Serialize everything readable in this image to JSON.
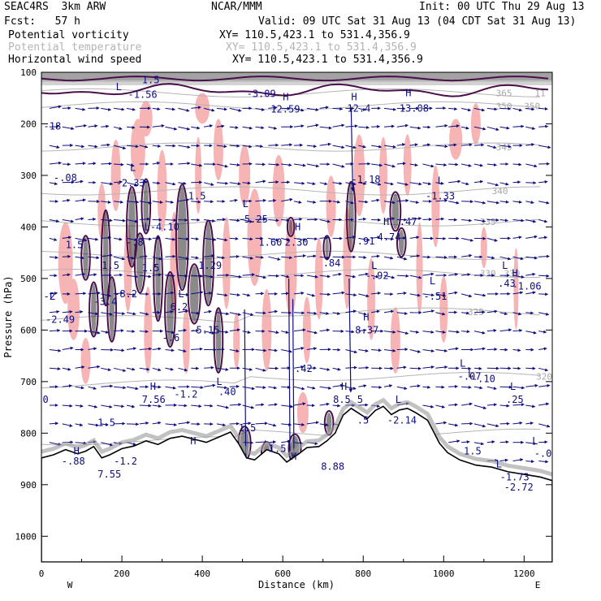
{
  "header": {
    "model": "SEAC4RS  3km ARW",
    "fcst": "Fcst:   57 h",
    "org": "NCAR/MMM",
    "init": "Init: 00 UTC Thu 29 Aug 13",
    "valid": "Valid: 09 UTC Sat 31 Aug 13 (04 CDT Sat 31 Aug 13)",
    "fields": [
      {
        "name": "Potential vorticity",
        "xy": "XY= 110.5,423.1 to 531.4,356.9",
        "color": "#000000"
      },
      {
        "name": "Potential temperature",
        "xy": "XY= 110.5,423.1 to 531.4,356.9",
        "color": "#b4b4b4"
      },
      {
        "name": "Horizontal wind speed",
        "xy": "XY= 110.5,423.1 to 531.4,356.9",
        "color": "#0d0d80"
      }
    ]
  },
  "colors": {
    "pv_pink": "#f7b4b4",
    "pv_dark": "#4a0f4a",
    "theta": "#b4b4b4",
    "wind": "#0d0d80",
    "terrain": "#000000"
  },
  "chart_data": {
    "type": "cross-section",
    "xlabel": "Distance (km)",
    "ylabel": "Pressure (hPa)",
    "xlim": [
      0,
      1270
    ],
    "ylim": [
      1050,
      100
    ],
    "x_ticks": [
      "0",
      "200",
      "400",
      "600",
      "800",
      "1000",
      "1200"
    ],
    "y_ticks": [
      "100",
      "200",
      "300",
      "400",
      "500",
      "600",
      "700",
      "800",
      "900",
      "1000"
    ],
    "x_end_labels": {
      "left": "W",
      "right": "E"
    },
    "theta_contours": [
      {
        "label": "320",
        "x": 1250,
        "p": 690
      },
      {
        "label": "325",
        "x": 1080,
        "p": 565
      },
      {
        "label": "330",
        "x": 1110,
        "p": 490
      },
      {
        "label": "330",
        "x": 1170,
        "p": 490
      },
      {
        "label": "335",
        "x": 1110,
        "p": 390
      },
      {
        "label": "340",
        "x": 1140,
        "p": 330
      },
      {
        "label": "345",
        "x": 1150,
        "p": 245
      },
      {
        "label": "350",
        "x": 1150,
        "p": 165
      },
      {
        "label": "350",
        "x": 1220,
        "p": 165
      },
      {
        "label": "365",
        "x": 1150,
        "p": 140
      },
      {
        "label": "11",
        "x": 1240,
        "p": 140
      }
    ],
    "extrema": [
      {
        "label": "-.08",
        "x": 30,
        "p": 305
      },
      {
        "label": "-3.09",
        "x": 510,
        "p": 142
      },
      {
        "label": "H",
        "x": 600,
        "p": 148
      },
      {
        "label": "12.59",
        "x": 570,
        "p": 172
      },
      {
        "label": "H",
        "x": 770,
        "p": 148
      },
      {
        "label": "12.4",
        "x": 760,
        "p": 170
      },
      {
        "label": "H",
        "x": 905,
        "p": 140
      },
      {
        "label": "13.08",
        "x": 890,
        "p": 170
      },
      {
        "label": "1.5",
        "x": 250,
        "p": 115
      },
      {
        "label": "-1.56",
        "x": 215,
        "p": 143
      },
      {
        "label": "L",
        "x": 185,
        "p": 128
      },
      {
        "label": "-18",
        "x": 5,
        "p": 205
      },
      {
        "label": "L",
        "x": 220,
        "p": 285
      },
      {
        "label": "-2.33",
        "x": 185,
        "p": 315
      },
      {
        "label": "-1.18",
        "x": 770,
        "p": 308
      },
      {
        "label": "L",
        "x": 985,
        "p": 310
      },
      {
        "label": "-1.33",
        "x": 955,
        "p": 340
      },
      {
        "label": "1.5",
        "x": 365,
        "p": 340
      },
      {
        "label": "L",
        "x": 500,
        "p": 355
      },
      {
        "label": "-5.25",
        "x": 490,
        "p": 385
      },
      {
        "label": "H",
        "x": 630,
        "p": 400
      },
      {
        "label": "2.30",
        "x": 605,
        "p": 430
      },
      {
        "label": "1.60",
        "x": 540,
        "p": 430
      },
      {
        "label": "H",
        "x": 850,
        "p": 390
      },
      {
        "label": "4.74",
        "x": 835,
        "p": 420
      },
      {
        "label": ".47",
        "x": 890,
        "p": 390
      },
      {
        "label": ".91",
        "x": 785,
        "p": 428
      },
      {
        "label": "L",
        "x": 255,
        "p": 400
      },
      {
        "label": "-4.10",
        "x": 270,
        "p": 400
      },
      {
        "label": "-.8",
        "x": 210,
        "p": 430
      },
      {
        "label": "1.5",
        "x": 60,
        "p": 435
      },
      {
        "label": "1.5",
        "x": 150,
        "p": 475
      },
      {
        "label": "1.5",
        "x": 250,
        "p": 480
      },
      {
        "label": "1.29",
        "x": 390,
        "p": 475
      },
      {
        "label": ".84",
        "x": 700,
        "p": 470
      },
      {
        "label": "L",
        "x": 820,
        "p": 475
      },
      {
        "label": "-.92",
        "x": 805,
        "p": 495
      },
      {
        "label": "L",
        "x": 965,
        "p": 505
      },
      {
        "label": "-.51",
        "x": 950,
        "p": 535
      },
      {
        "label": "L",
        "x": 1145,
        "p": 475
      },
      {
        "label": "H",
        "x": 1170,
        "p": 490
      },
      {
        "label": ".43",
        "x": 1135,
        "p": 510
      },
      {
        "label": "-1.06",
        "x": 1170,
        "p": 515
      },
      {
        "label": "-2",
        "x": 5,
        "p": 535
      },
      {
        "label": "L",
        "x": 20,
        "p": 535
      },
      {
        "label": "-8.2",
        "x": 180,
        "p": 530
      },
      {
        "label": "-3.4",
        "x": 130,
        "p": 545
      },
      {
        "label": "L",
        "x": 340,
        "p": 530
      },
      {
        "label": "6.2",
        "x": 320,
        "p": 555
      },
      {
        "label": "-2.49",
        "x": 10,
        "p": 580
      },
      {
        "label": "H",
        "x": 800,
        "p": 575
      },
      {
        "label": "8.37",
        "x": 780,
        "p": 600
      },
      {
        "label": "-.6",
        "x": 300,
        "p": 615
      },
      {
        "label": "-5.15",
        "x": 370,
        "p": 600
      },
      {
        "label": "L",
        "x": 1040,
        "p": 665
      },
      {
        "label": "-.07",
        "x": 1035,
        "p": 690
      },
      {
        "label": "L",
        "x": 1060,
        "p": 685
      },
      {
        "label": "-.10",
        "x": 1070,
        "p": 695
      },
      {
        "label": ".42",
        "x": 630,
        "p": 675
      },
      {
        "label": "H",
        "x": 270,
        "p": 710
      },
      {
        "label": "7.56",
        "x": 250,
        "p": 735
      },
      {
        "label": "-1.2",
        "x": 330,
        "p": 725
      },
      {
        "label": "L",
        "x": 435,
        "p": 700
      },
      {
        "label": ".40",
        "x": 440,
        "p": 720
      },
      {
        "label": "H",
        "x": 745,
        "p": 710
      },
      {
        "label": "0",
        "x": 3,
        "p": 735
      },
      {
        "label": "L",
        "x": 1165,
        "p": 710
      },
      {
        "label": ".25",
        "x": 1155,
        "p": 735
      },
      {
        "label": "8.5",
        "x": 725,
        "p": 735
      },
      {
        "label": "5",
        "x": 785,
        "p": 735
      },
      {
        "label": "L",
        "x": 880,
        "p": 735
      },
      {
        "label": ".5",
        "x": 785,
        "p": 775
      },
      {
        "label": "-2.14",
        "x": 860,
        "p": 775
      },
      {
        "label": "1.5",
        "x": 140,
        "p": 780
      },
      {
        "label": "1.5",
        "x": 490,
        "p": 790
      },
      {
        "label": "H",
        "x": 370,
        "p": 815
      },
      {
        "label": "1.5",
        "x": 565,
        "p": 830
      },
      {
        "label": "L",
        "x": 1220,
        "p": 815
      },
      {
        "label": "-.08",
        "x": 1225,
        "p": 840
      },
      {
        "label": "H",
        "x": 80,
        "p": 835
      },
      {
        "label": "1.5",
        "x": 1050,
        "p": 835
      },
      {
        "label": "-1.2",
        "x": 180,
        "p": 855
      },
      {
        "label": "-.88",
        "x": 50,
        "p": 855
      },
      {
        "label": "7.55",
        "x": 140,
        "p": 880
      },
      {
        "label": "H",
        "x": 620,
        "p": 845
      },
      {
        "label": "8.88",
        "x": 695,
        "p": 865
      },
      {
        "label": "-1.73",
        "x": 1140,
        "p": 885
      },
      {
        "label": "L",
        "x": 1130,
        "p": 860
      },
      {
        "label": "-2.72",
        "x": 1150,
        "p": 905
      }
    ],
    "grid": false
  }
}
